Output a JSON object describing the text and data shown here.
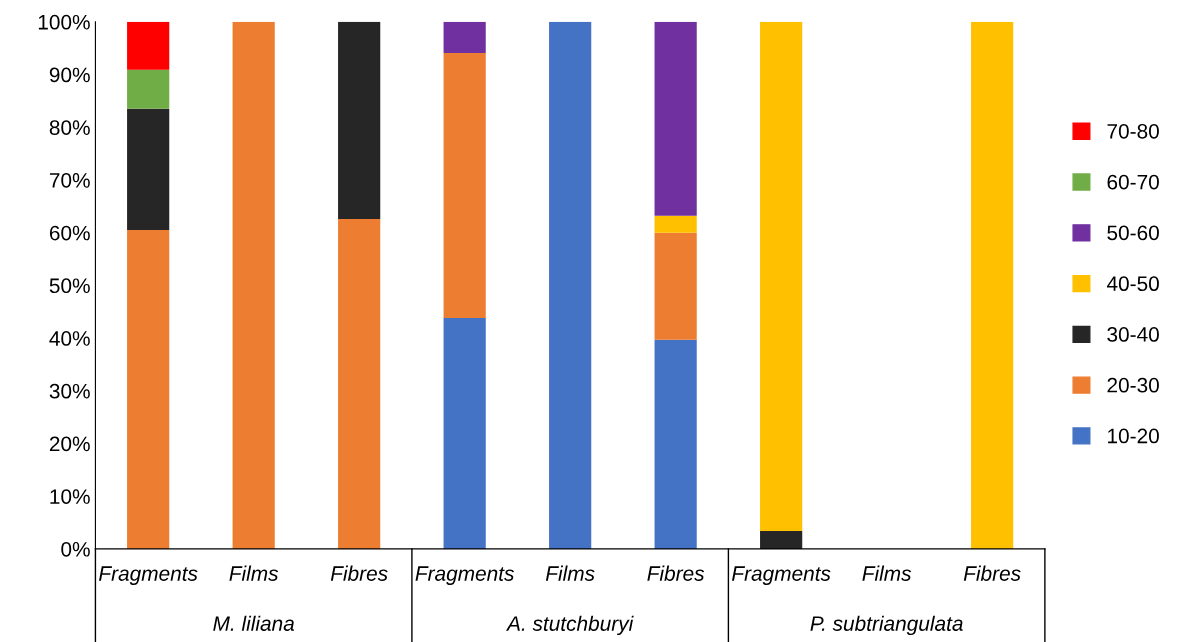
{
  "chart_data": {
    "type": "bar",
    "stacked": true,
    "categories": [
      "Fragments",
      "Films",
      "Fibres",
      "Fragments",
      "Films",
      "Fibres",
      "Fragments",
      "Films",
      "Fibres"
    ],
    "series": [
      {
        "name": "10-20",
        "color": "#4472c4",
        "values": [
          0,
          0,
          0,
          43.8,
          100,
          39.7,
          0,
          0,
          0
        ]
      },
      {
        "name": "20-30",
        "color": "#ed7d31",
        "values": [
          60.5,
          100,
          62.6,
          50.3,
          0,
          20.3,
          0,
          0,
          0
        ]
      },
      {
        "name": "30-40",
        "color": "#262626",
        "values": [
          23,
          0,
          37.4,
          0,
          0,
          0,
          3.4,
          0,
          0
        ]
      },
      {
        "name": "40-50",
        "color": "#ffc000",
        "values": [
          0,
          0,
          0,
          0,
          0,
          3.2,
          96.6,
          0,
          100
        ]
      },
      {
        "name": "50-60",
        "color": "#7030a0",
        "values": [
          0,
          0,
          0,
          5.9,
          0,
          36.8,
          0,
          0,
          0
        ]
      },
      {
        "name": "60-70",
        "color": "#70ad47",
        "values": [
          7.4,
          0,
          0,
          0,
          0,
          0,
          0,
          0,
          0
        ]
      },
      {
        "name": "70-80",
        "color": "#ff0000",
        "values": [
          9.1,
          0,
          0,
          0,
          0,
          0,
          0,
          0,
          0
        ]
      }
    ],
    "annotations": [
      "M. liliana",
      "A. stutchburyi",
      "P. subtriangulata"
    ],
    "ylim": [
      0,
      100
    ],
    "yticks": [
      {
        "value": 0,
        "label": "0%"
      },
      {
        "value": 10,
        "label": "10%"
      },
      {
        "value": 20,
        "label": "20%"
      },
      {
        "value": 30,
        "label": "30%"
      },
      {
        "value": 40,
        "label": "40%"
      },
      {
        "value": 50,
        "label": "50%"
      },
      {
        "value": 60,
        "label": "60%"
      },
      {
        "value": 70,
        "label": "70%"
      },
      {
        "value": 80,
        "label": "80%"
      },
      {
        "value": 90,
        "label": "90%"
      },
      {
        "value": 100,
        "label": "100%"
      }
    ],
    "grid": false,
    "legend": "right"
  }
}
